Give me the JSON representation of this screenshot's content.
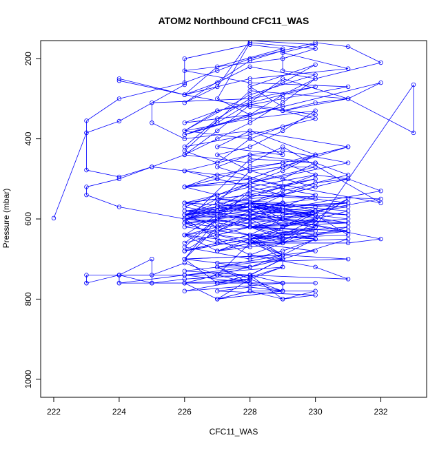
{
  "chart_data": {
    "type": "line",
    "title": "ATOM2 Northbound CFC11_WAS",
    "xlabel": "CFC11_WAS",
    "ylabel": "Pressure (mbar)",
    "xlim": [
      221.6,
      233.4
    ],
    "ylim": [
      1045,
      155
    ],
    "y_reversed": true,
    "grid": false,
    "x_ticks": [
      222,
      224,
      226,
      228,
      230,
      232
    ],
    "x_tick_labels": [
      "222",
      "224",
      "226",
      "228",
      "230",
      "232"
    ],
    "y_ticks": [
      200,
      400,
      600,
      800,
      1000
    ],
    "y_tick_labels": [
      "200",
      "400",
      "600",
      "800",
      "1000"
    ],
    "series_color": "#0000ff",
    "marker": "open-circle",
    "x": [
      222,
      223,
      224,
      226,
      226,
      228,
      229,
      227,
      226,
      228,
      231,
      229,
      230,
      228,
      227,
      226,
      228,
      229,
      229,
      230,
      228,
      226,
      227,
      229,
      231,
      228,
      226,
      229,
      230,
      228,
      227,
      228,
      226,
      229,
      228,
      230,
      229,
      228,
      227,
      226,
      228,
      230,
      229,
      231,
      228,
      226,
      227,
      228,
      229,
      230,
      228,
      227,
      226,
      228,
      229,
      232,
      228,
      226,
      227,
      229,
      231,
      228,
      230,
      229,
      228,
      227,
      226,
      228,
      229,
      230,
      228,
      226,
      227,
      228,
      229,
      229,
      230,
      228,
      227,
      229,
      226,
      228,
      229,
      231,
      230,
      228,
      226,
      227,
      229,
      228,
      230,
      228,
      227,
      226,
      229,
      231,
      228,
      227,
      226,
      228,
      230,
      229,
      228,
      227,
      226,
      228,
      229,
      230,
      232,
      228,
      226,
      227,
      229,
      228,
      231,
      228,
      226,
      227,
      228,
      229,
      230,
      228,
      227,
      226,
      228,
      229,
      230,
      228,
      227,
      226,
      229,
      228,
      231,
      230,
      228,
      227,
      226,
      228,
      229,
      230,
      228,
      229,
      227,
      226,
      228,
      229,
      231,
      228,
      227,
      226,
      229,
      228,
      230,
      233,
      233,
      231,
      229,
      228,
      227,
      226,
      228,
      229,
      230,
      228,
      227,
      226,
      224,
      224,
      226,
      228,
      229,
      230,
      231,
      232,
      228,
      226,
      227,
      229,
      230,
      228,
      225,
      225,
      226,
      228,
      227,
      229,
      228,
      226,
      228,
      230,
      229,
      228,
      227,
      228,
      229,
      231,
      230,
      228,
      226,
      227,
      228,
      229,
      231,
      228,
      226,
      227,
      228,
      229,
      230,
      228,
      227,
      226,
      228,
      229,
      230,
      228,
      227,
      226,
      228,
      229,
      230,
      231,
      228,
      227,
      226,
      228,
      229,
      230,
      228,
      227,
      226,
      228,
      229,
      230,
      231,
      232,
      228,
      227,
      226,
      227,
      228,
      229,
      230,
      231,
      228,
      229,
      231,
      227,
      228,
      229,
      228,
      226,
      225,
      225,
      224,
      224,
      226,
      228,
      227,
      229,
      229,
      226,
      228,
      227,
      228,
      230,
      229,
      228,
      227,
      226,
      228,
      229,
      228,
      228,
      227,
      228,
      229,
      228,
      230,
      231,
      228,
      229,
      227,
      228,
      226,
      229,
      229,
      228,
      228,
      227,
      226,
      225,
      224,
      224,
      225,
      226,
      228,
      229,
      228,
      227,
      226,
      225,
      224,
      223,
      223,
      223,
      224,
      224,
      226,
      228,
      228,
      229,
      230,
      227,
      229,
      228,
      228,
      229,
      227,
      229,
      228,
      227,
      230,
      229,
      228,
      227,
      226,
      229,
      230,
      228,
      231,
      232,
      229,
      231,
      228,
      230,
      229,
      228,
      227,
      226,
      228,
      229,
      230,
      228,
      229,
      229,
      227,
      228,
      229,
      231,
      229,
      228,
      227,
      229,
      228,
      230,
      228,
      228,
      229,
      229,
      228,
      227,
      226,
      225,
      224,
      223,
      223,
      223,
      224,
      226,
      227,
      228,
      229,
      230,
      231,
      232,
      230,
      229,
      228,
      227,
      226,
      225,
      224,
      223,
      223,
      224,
      226,
      228,
      228,
      227,
      228,
      227,
      228,
      229,
      230,
      231,
      228,
      227,
      228,
      229,
      228,
      227,
      229,
      228,
      226,
      227,
      228,
      229,
      230,
      231,
      228,
      227,
      226,
      228,
      229,
      230,
      228,
      227,
      226,
      228,
      229,
      230,
      231,
      228,
      227,
      226,
      228,
      229,
      230,
      228,
      227,
      228,
      229,
      230,
      228,
      227,
      226,
      228,
      229,
      230,
      231,
      228,
      227,
      226,
      228,
      229,
      230,
      228,
      227,
      226,
      228,
      229,
      230,
      228,
      227,
      228,
      229,
      231,
      228,
      229,
      230,
      228,
      227,
      226,
      228,
      229,
      230,
      231,
      228,
      227,
      226,
      228,
      229,
      230,
      228,
      229,
      227,
      226,
      228,
      229,
      230,
      228,
      227,
      226,
      228,
      229,
      230,
      228,
      227,
      226,
      228,
      229,
      231,
      230,
      228,
      227,
      228,
      229
    ],
    "y": [
      598,
      385,
      356,
      265,
      200,
      165,
      175,
      220,
      290,
      250,
      225,
      185,
      165,
      155,
      270,
      310,
      205,
      180,
      230,
      240,
      290,
      380,
      330,
      300,
      270,
      260,
      230,
      200,
      175,
      160,
      300,
      340,
      390,
      320,
      270,
      215,
      260,
      300,
      350,
      420,
      390,
      350,
      330,
      300,
      280,
      430,
      460,
      400,
      370,
      340,
      315,
      380,
      440,
      460,
      420,
      560,
      500,
      520,
      490,
      460,
      420,
      380,
      440,
      480,
      510,
      540,
      570,
      600,
      570,
      540,
      510,
      590,
      620,
      580,
      540,
      500,
      460,
      440,
      470,
      520,
      600,
      560,
      530,
      490,
      460,
      450,
      610,
      640,
      600,
      560,
      520,
      480,
      560,
      590,
      570,
      560,
      530,
      600,
      660,
      620,
      580,
      560,
      590,
      630,
      680,
      650,
      620,
      580,
      550,
      540,
      640,
      680,
      640,
      600,
      610,
      570,
      600,
      650,
      690,
      660,
      620,
      590,
      600,
      700,
      720,
      690,
      650,
      610,
      620,
      700,
      690,
      650,
      640,
      590,
      560,
      600,
      670,
      700,
      680,
      650,
      640,
      690,
      720,
      730,
      740,
      700,
      650,
      660,
      740,
      760,
      700,
      650,
      620,
      265,
      385,
      300,
      250,
      310,
      360,
      390,
      340,
      290,
      250,
      220,
      260,
      290,
      250,
      255,
      290,
      320,
      330,
      310,
      300,
      260,
      340,
      360,
      330,
      290,
      270,
      300,
      310,
      360,
      400,
      380,
      420,
      440,
      400,
      380,
      350,
      330,
      380,
      420,
      440,
      480,
      470,
      420,
      440,
      500,
      480,
      460,
      440,
      430,
      460,
      510,
      520,
      500,
      470,
      460,
      490,
      520,
      540,
      520,
      500,
      470,
      470,
      510,
      540,
      560,
      540,
      520,
      490,
      500,
      560,
      580,
      560,
      540,
      520,
      500,
      530,
      570,
      590,
      560,
      540,
      510,
      500,
      530,
      590,
      600,
      610,
      640,
      650,
      620,
      600,
      550,
      660,
      690,
      700,
      710,
      720,
      700,
      740,
      750,
      760,
      700,
      740,
      760,
      740,
      720,
      720,
      780,
      760,
      780,
      750,
      800,
      780,
      780,
      800,
      780,
      800,
      760,
      750,
      720,
      745,
      750,
      760,
      740,
      700,
      690,
      720,
      750,
      740,
      700,
      720,
      760,
      740,
      720,
      700,
      740,
      760,
      740,
      710,
      740,
      740,
      760,
      760,
      760,
      760,
      760,
      760,
      760,
      760,
      760,
      740,
      740,
      760,
      760,
      740,
      740,
      740,
      740,
      760,
      760,
      760,
      760,
      760,
      740,
      760,
      780,
      800,
      780,
      770,
      780,
      790,
      800,
      740,
      760,
      700,
      690,
      680,
      660,
      660,
      650,
      600,
      610,
      620,
      608,
      655,
      640,
      660,
      680,
      640,
      600,
      590,
      560,
      620,
      660,
      680,
      650,
      640,
      630,
      600,
      580,
      580,
      560,
      570,
      600,
      620,
      580,
      560,
      540,
      520,
      500,
      480,
      470,
      495,
      478,
      385,
      355,
      300,
      260,
      230,
      200,
      180,
      160,
      170,
      210,
      250,
      310,
      360,
      400,
      440,
      470,
      500,
      520,
      540,
      570,
      600,
      580,
      620,
      640,
      660,
      680,
      660,
      640,
      600,
      580,
      560,
      550,
      560,
      580,
      600,
      630,
      650,
      620,
      640,
      660,
      670,
      660,
      640,
      620,
      640,
      660,
      680,
      650,
      640,
      620,
      600,
      620,
      640,
      660,
      650,
      640,
      630,
      620,
      600,
      620,
      640,
      660,
      640,
      620,
      600,
      620,
      640,
      650,
      640,
      620,
      610,
      600,
      590,
      580,
      570,
      560,
      580,
      600,
      610,
      600,
      590,
      580,
      570,
      580,
      590,
      600,
      590,
      580,
      570,
      560,
      580,
      600,
      620,
      640,
      630,
      620,
      610,
      600,
      590,
      580,
      570,
      560,
      570,
      580,
      590,
      600,
      590,
      580,
      570,
      560,
      550,
      560,
      570,
      580,
      590,
      600,
      590,
      580,
      570,
      560,
      550,
      540,
      550,
      560,
      570,
      580,
      590,
      580,
      570,
      560,
      550,
      540
    ]
  }
}
